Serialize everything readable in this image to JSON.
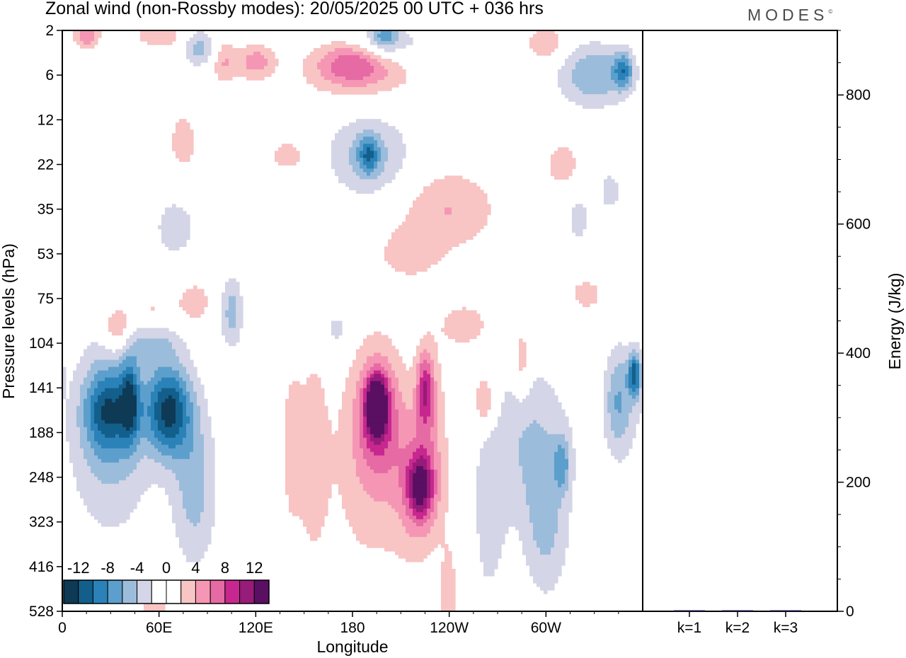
{
  "header": {
    "title": "Zonal wind (non-Rossby modes):  20/05/2025  00 UTC  + 036 hrs",
    "brand": "MODES",
    "brand_mark": "©"
  },
  "chart_data": [
    {
      "type": "heatmap",
      "name": "zonal-wind-section",
      "xlabel": "Longitude",
      "ylabel": "Pressure levels (hPa)",
      "x_ticks": [
        "0",
        "60E",
        "120E",
        "180",
        "120W",
        "60W"
      ],
      "x_tick_values": [
        0,
        60,
        120,
        180,
        240,
        300
      ],
      "xlim": [
        0,
        360
      ],
      "y_ticks": [
        "2",
        "6",
        "12",
        "22",
        "35",
        "53",
        "75",
        "104",
        "141",
        "188",
        "248",
        "323",
        "416",
        "528"
      ],
      "y_axis": "categorical pressure levels, top to bottom",
      "colorbar": {
        "labels": [
          "-12",
          "-8",
          "-4",
          "0",
          "4",
          "8",
          "12"
        ],
        "levels": [
          -14,
          -12,
          -10,
          -8,
          -6,
          -4,
          -2,
          0,
          2,
          4,
          6,
          8,
          10,
          12,
          14
        ],
        "colors": [
          "#0e3a56",
          "#135f8c",
          "#2a82b8",
          "#5c9fcc",
          "#9cbcdb",
          "#d4d5e6",
          "#ffffff",
          "#ffffff",
          "#f8c4c4",
          "#f597b4",
          "#e66aa4",
          "#c7278f",
          "#971b79",
          "#5a0f63"
        ],
        "placement": "bottom-left"
      },
      "blobs": [
        {
          "lon": 28,
          "lev": 8.5,
          "value": -8,
          "dlon": 14,
          "dlev": 0.9
        },
        {
          "lon": 42,
          "lev": 8.3,
          "value": -8,
          "dlon": 6,
          "dlev": 0.9
        },
        {
          "lon": 66,
          "lev": 8.5,
          "value": -12,
          "dlon": 14,
          "dlev": 1.0
        },
        {
          "lon": 30,
          "lev": 9.0,
          "value": -5,
          "dlon": 26,
          "dlev": 2.2
        },
        {
          "lon": 82,
          "lev": 10.2,
          "value": -5,
          "dlon": 14,
          "dlev": 1.8
        },
        {
          "lon": 105,
          "lev": 6.3,
          "value": -5,
          "dlon": 7,
          "dlev": 0.8
        },
        {
          "lon": 55,
          "lev": 6.8,
          "value": -5,
          "dlon": 20,
          "dlev": 0.6
        },
        {
          "lon": 34,
          "lev": 6.7,
          "value": 6,
          "dlon": 9,
          "dlev": 0.5
        },
        {
          "lon": 55,
          "lev": 6.4,
          "value": 5,
          "dlon": 16,
          "dlev": 0.5
        },
        {
          "lon": 82,
          "lev": 6.1,
          "value": 3,
          "dlon": 12,
          "dlev": 0.6
        },
        {
          "lon": 15,
          "lev": 5.0,
          "value": 2,
          "dlon": 6,
          "dlev": 0.4
        },
        {
          "lon": 155,
          "lev": 9.5,
          "value": 3,
          "dlon": 10,
          "dlev": 2.5
        },
        {
          "lon": 142,
          "lev": 9.3,
          "value": 3,
          "dlon": 6,
          "dlev": 1.8
        },
        {
          "lon": 195,
          "lev": 8.4,
          "value": 14,
          "dlon": 6,
          "dlev": 0.6
        },
        {
          "lon": 196,
          "lev": 8.6,
          "value": 7,
          "dlon": 14,
          "dlev": 1.4
        },
        {
          "lon": 190,
          "lev": 9.8,
          "value": 3,
          "dlon": 26,
          "dlev": 2.6
        },
        {
          "lon": 222,
          "lev": 10.2,
          "value": 9,
          "dlon": 8,
          "dlev": 0.7
        },
        {
          "lon": 222,
          "lev": 10.2,
          "value": 5,
          "dlon": 16,
          "dlev": 1.6
        },
        {
          "lon": 225,
          "lev": 8.0,
          "value": 7,
          "dlon": 5,
          "dlev": 0.8
        },
        {
          "lon": 228,
          "lev": 8.4,
          "value": 3,
          "dlon": 10,
          "dlev": 1.4
        },
        {
          "lon": 262,
          "lev": 8.3,
          "value": 5,
          "dlon": 7,
          "dlev": 0.6
        },
        {
          "lon": 285,
          "lev": 7.4,
          "value": 4,
          "dlon": 5,
          "dlev": 0.8
        },
        {
          "lon": 250,
          "lev": 6.6,
          "value": 3,
          "dlon": 18,
          "dlev": 0.6
        },
        {
          "lon": 240,
          "lev": 12.8,
          "value": 3,
          "dlon": 6,
          "dlev": 1.3
        },
        {
          "lon": 290,
          "lev": 9.2,
          "value": -4,
          "dlon": 26,
          "dlev": 1.8
        },
        {
          "lon": 355,
          "lev": 7.7,
          "value": -10,
          "dlon": 4,
          "dlev": 0.5
        },
        {
          "lon": 345,
          "lev": 8.3,
          "value": -6,
          "dlon": 9,
          "dlev": 1.2
        },
        {
          "lon": 300,
          "lev": 11.2,
          "value": -4,
          "dlon": 14,
          "dlev": 1.6
        },
        {
          "lon": 310,
          "lev": 9.7,
          "value": -5,
          "dlon": 5,
          "dlev": 0.6
        },
        {
          "lon": 180,
          "lev": 0.7,
          "value": 6,
          "dlon": 22,
          "dlev": 0.5
        },
        {
          "lon": 185,
          "lev": 1.0,
          "value": 3,
          "dlon": 40,
          "dlev": 0.6
        },
        {
          "lon": 120,
          "lev": 0.7,
          "value": 5,
          "dlon": 12,
          "dlev": 0.4
        },
        {
          "lon": 100,
          "lev": 0.7,
          "value": 4,
          "dlon": 8,
          "dlev": 0.5
        },
        {
          "lon": 15,
          "lev": 0.1,
          "value": 6,
          "dlon": 8,
          "dlev": 0.3
        },
        {
          "lon": 60,
          "lev": 0.1,
          "value": 4,
          "dlon": 14,
          "dlev": 0.3
        },
        {
          "lon": 300,
          "lev": 0.3,
          "value": 4,
          "dlon": 12,
          "dlev": 0.4
        },
        {
          "lon": 200,
          "lev": 0.3,
          "value": -4,
          "dlon": 24,
          "dlev": 0.4
        },
        {
          "lon": 200,
          "lev": 0.1,
          "value": -5,
          "dlon": 8,
          "dlev": 0.3
        },
        {
          "lon": 85,
          "lev": 0.4,
          "value": -5,
          "dlon": 10,
          "dlev": 0.4
        },
        {
          "lon": 330,
          "lev": 1.0,
          "value": -6,
          "dlon": 22,
          "dlev": 0.7
        },
        {
          "lon": 348,
          "lev": 0.9,
          "value": -7,
          "dlon": 6,
          "dlev": 0.4
        },
        {
          "lon": 190,
          "lev": 2.8,
          "value": -5,
          "dlon": 25,
          "dlev": 0.9
        },
        {
          "lon": 190,
          "lev": 2.8,
          "value": -6,
          "dlon": 6,
          "dlev": 0.4
        },
        {
          "lon": 240,
          "lev": 4.0,
          "value": 4,
          "dlon": 30,
          "dlev": 0.9
        },
        {
          "lon": 215,
          "lev": 5.0,
          "value": 3,
          "dlon": 20,
          "dlev": 0.6
        },
        {
          "lon": 75,
          "lev": 2.5,
          "value": 3,
          "dlon": 10,
          "dlev": 0.8
        },
        {
          "lon": 310,
          "lev": 3.0,
          "value": 3,
          "dlon": 12,
          "dlev": 0.6
        },
        {
          "lon": 70,
          "lev": 4.4,
          "value": -3,
          "dlon": 15,
          "dlev": 0.8
        },
        {
          "lon": 320,
          "lev": 4.2,
          "value": -3,
          "dlon": 8,
          "dlev": 0.6
        },
        {
          "lon": 340,
          "lev": 3.6,
          "value": -3,
          "dlon": 8,
          "dlev": 0.5
        },
        {
          "lon": 170,
          "lev": 6.7,
          "value": -3,
          "dlon": 8,
          "dlev": 0.5
        },
        {
          "lon": 265,
          "lev": 11.0,
          "value": -3,
          "dlon": 10,
          "dlev": 2.0
        },
        {
          "lon": 57,
          "lev": 12.8,
          "value": 3,
          "dlon": 10,
          "dlev": 0.8
        },
        {
          "lon": 275,
          "lev": 13.0,
          "value": 2,
          "dlon": 10,
          "dlev": 0.6
        },
        {
          "lon": 140,
          "lev": 2.8,
          "value": 3,
          "dlon": 14,
          "dlev": 0.4
        },
        {
          "lon": 325,
          "lev": 5.9,
          "value": 3,
          "dlon": 12,
          "dlev": 0.4
        }
      ]
    },
    {
      "type": "bar",
      "name": "energy-panel",
      "categories": [
        "k=1",
        "k=2",
        "k=3"
      ],
      "values": [
        1.5,
        0.8,
        0.4
      ],
      "ylabel": "Energy (J/kg)",
      "ylim": [
        0,
        900
      ],
      "y_ticks": [
        0,
        200,
        400,
        600,
        800
      ],
      "y_axis_side": "right",
      "bar_color": "#1a1a4a"
    }
  ]
}
